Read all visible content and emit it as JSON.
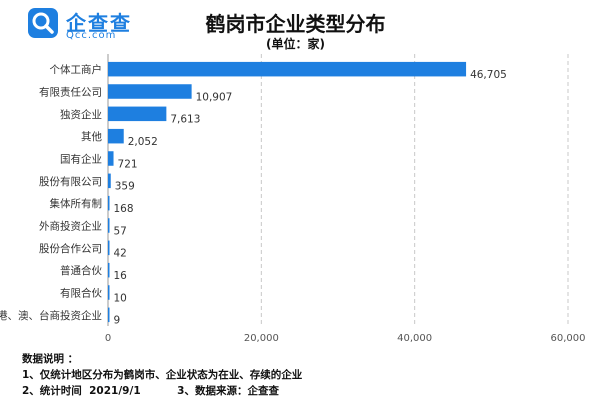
{
  "logo": {
    "name": "企查查",
    "url": "Qcc.com",
    "brand_color": "#1e7fe0"
  },
  "title": "鹤岗市企业类型分布",
  "subtitle": "(单位：家)",
  "chart_data": {
    "type": "bar",
    "orientation": "horizontal",
    "categories": [
      "个体工商户",
      "有限责任公司",
      "独资企业",
      "其他",
      "国有企业",
      "股份有限公司",
      "集体所有制",
      "外商投资企业",
      "股份合作公司",
      "普通合伙",
      "有限合伙",
      "港、澳、台商投资企业"
    ],
    "values": [
      46705,
      10907,
      7613,
      2052,
      721,
      359,
      168,
      57,
      42,
      16,
      10,
      9
    ],
    "value_labels": [
      "46,705",
      "10,907",
      "7,613",
      "2,052",
      "721",
      "359",
      "168",
      "57",
      "42",
      "16",
      "10",
      "9"
    ],
    "xlim": [
      0,
      60000
    ],
    "xticks": [
      0,
      20000,
      40000,
      60000
    ],
    "xtick_labels": [
      "0",
      "20,000",
      "40,000",
      "60,000"
    ],
    "grid": true,
    "bar_color": "#1e7fe0"
  },
  "notes": {
    "heading": "数据说明 ：",
    "line1": "1、仅统计地区分布为鹤岗市、企业状态为在业、存续的企业",
    "line2": "2、统计时间  2021/9/1          3、数据来源：企查查"
  }
}
